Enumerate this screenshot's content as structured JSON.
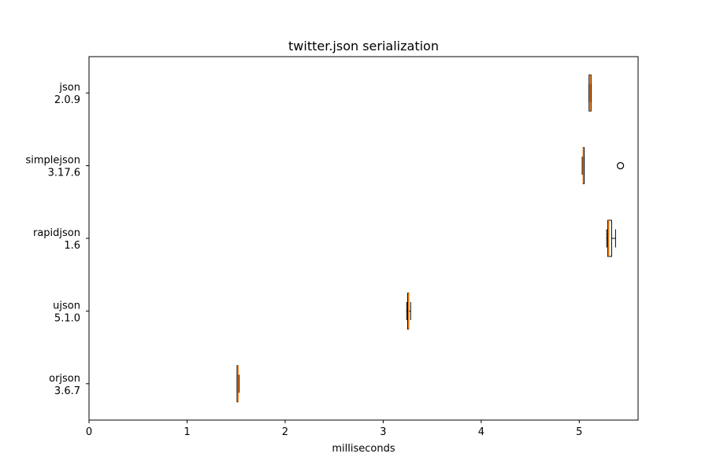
{
  "chart_data": {
    "type": "boxplot",
    "orientation": "horizontal",
    "title": "twitter.json serialization",
    "xlabel": "milliseconds",
    "ylabel": "",
    "xlim": [
      0,
      5.6
    ],
    "xticks": [
      0,
      1,
      2,
      3,
      4,
      5
    ],
    "grid": false,
    "categories": [
      {
        "name": "json",
        "version": "2.0.9",
        "whislo": 5.1,
        "q1": 5.1,
        "median": 5.11,
        "q3": 5.12,
        "whishi": 5.12,
        "fliers": []
      },
      {
        "name": "simplejson",
        "version": "3.17.6",
        "whislo": 5.03,
        "q1": 5.04,
        "median": 5.04,
        "q3": 5.05,
        "whishi": 5.05,
        "fliers": [
          5.42
        ]
      },
      {
        "name": "rapidjson",
        "version": "1.6",
        "whislo": 5.28,
        "q1": 5.29,
        "median": 5.3,
        "q3": 5.33,
        "whishi": 5.37,
        "fliers": []
      },
      {
        "name": "ujson",
        "version": "5.1.0",
        "whislo": 3.24,
        "q1": 3.25,
        "median": 3.26,
        "q3": 3.26,
        "whishi": 3.28,
        "fliers": []
      },
      {
        "name": "orjson",
        "version": "3.6.7",
        "whislo": 1.51,
        "q1": 1.51,
        "median": 1.52,
        "q3": 1.52,
        "whishi": 1.53,
        "fliers": []
      }
    ],
    "colors": {
      "median": "#ff7f0e",
      "box": "#000000",
      "background": "#ffffff"
    }
  }
}
